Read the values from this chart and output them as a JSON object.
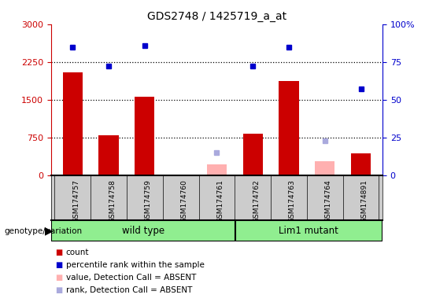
{
  "title": "GDS2748 / 1425719_a_at",
  "samples": [
    "GSM174757",
    "GSM174758",
    "GSM174759",
    "GSM174760",
    "GSM174761",
    "GSM174762",
    "GSM174763",
    "GSM174764",
    "GSM174891"
  ],
  "counts": [
    2050,
    800,
    1560,
    10,
    20,
    830,
    1870,
    20,
    430
  ],
  "percentile_ranks_pct": [
    85,
    72,
    86,
    null,
    null,
    72,
    85,
    null,
    57
  ],
  "absent_values": [
    null,
    null,
    null,
    null,
    215,
    null,
    null,
    280,
    null
  ],
  "absent_ranks_pct": [
    null,
    null,
    null,
    null,
    15,
    null,
    null,
    23,
    null
  ],
  "absent_count_values": [
    null,
    null,
    null,
    10,
    null,
    null,
    null,
    null,
    null
  ],
  "wild_type_count": 5,
  "lim1_mutant_count": 4,
  "ylim_left": [
    0,
    3000
  ],
  "ylim_right": [
    0,
    100
  ],
  "yticks_left": [
    0,
    750,
    1500,
    2250,
    3000
  ],
  "yticks_right": [
    0,
    25,
    50,
    75,
    100
  ],
  "left_color": "#CC0000",
  "right_color": "#0000CC",
  "bar_color": "#CC0000",
  "absent_bar_color": "#FFB0B0",
  "absent_rank_color": "#AAAADD",
  "bg_color": "#FFFFFF",
  "label_box_color": "#CCCCCC",
  "wild_type_color": "#90EE90",
  "lim1_color": "#90EE90",
  "legend_items": [
    {
      "label": "count",
      "color": "#CC0000"
    },
    {
      "label": "percentile rank within the sample",
      "color": "#0000CC"
    },
    {
      "label": "value, Detection Call = ABSENT",
      "color": "#FFB0B0"
    },
    {
      "label": "rank, Detection Call = ABSENT",
      "color": "#AAAADD"
    }
  ]
}
